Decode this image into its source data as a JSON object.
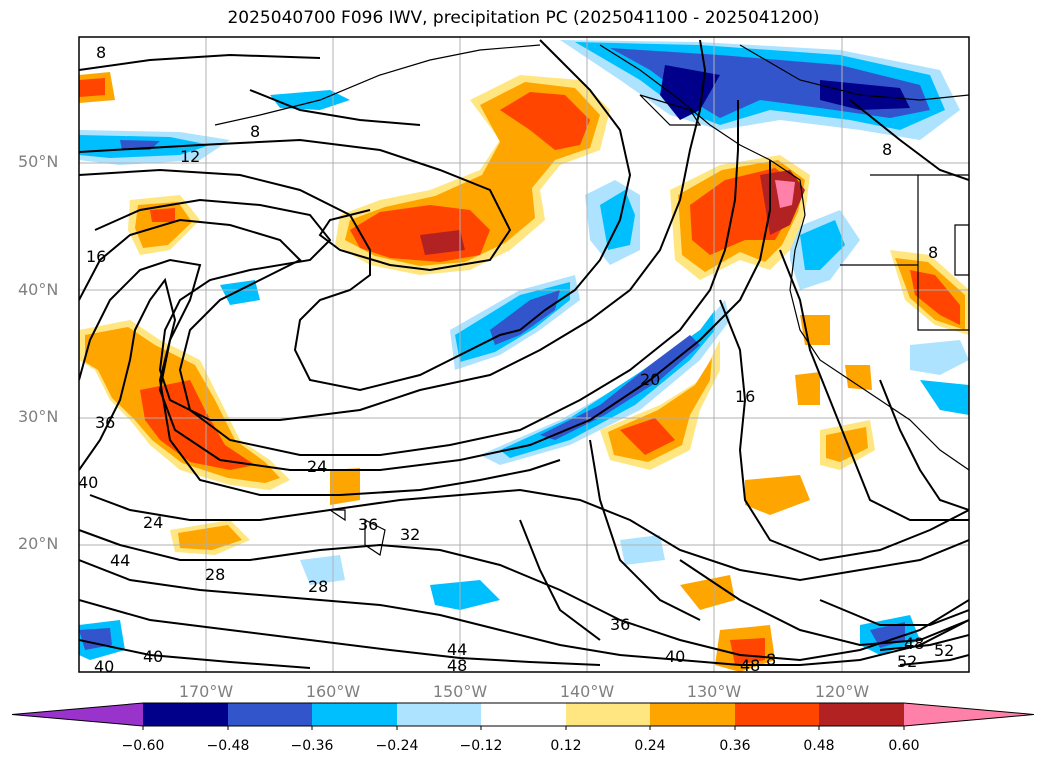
{
  "title": "2025040700 F096 IWV, precipitation PC (2025041100 - 2025041200)",
  "lat_labels": [
    "50°N",
    "40°N",
    "30°N",
    "20°N"
  ],
  "lon_labels": [
    "170°W",
    "160°W",
    "150°W",
    "140°W",
    "130°W",
    "120°W"
  ],
  "colorbar": {
    "ticks": [
      "−0.60",
      "−0.48",
      "−0.36",
      "−0.24",
      "−0.12",
      "0.12",
      "0.24",
      "0.36",
      "0.48",
      "0.60"
    ],
    "colors": [
      "#9933cc",
      "#00008b",
      "#3355cc",
      "#00bfff",
      "#aee3ff",
      "#ffffff",
      "#ffe680",
      "#ffa500",
      "#ff4500",
      "#b22222",
      "#ff80a8"
    ]
  },
  "contour_labels": [
    "8",
    "8",
    "12",
    "16",
    "16",
    "20",
    "24",
    "24",
    "28",
    "28",
    "32",
    "36",
    "36",
    "36",
    "40",
    "40",
    "40",
    "40",
    "44",
    "44",
    "48",
    "48",
    "48",
    "52",
    "52",
    "8",
    "8",
    "8"
  ],
  "legend_colors": {
    "purple": "#9933cc",
    "navy": "#00008b",
    "royal": "#3355cc",
    "sky": "#00bfff",
    "light_blue": "#aee3ff",
    "yellow": "#ffe680",
    "orange": "#ffa500",
    "red_orange": "#ff4500",
    "dark_red": "#b22222",
    "pink": "#ff80a8"
  }
}
